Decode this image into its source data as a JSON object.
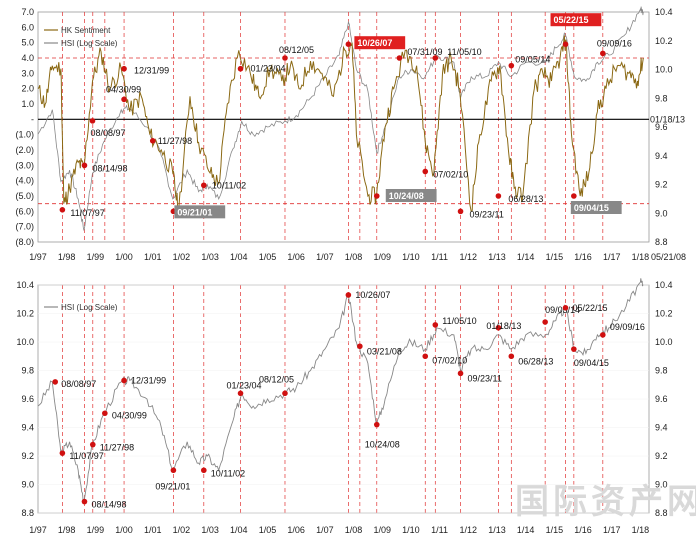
{
  "chart_data": [
    {
      "type": "line",
      "legend": [
        "HK Sentiment",
        "HSI (Log Scale)"
      ],
      "left_axis": {
        "range": [
          -8.0,
          7.0
        ],
        "ticks": [
          "7.0",
          "6.0",
          "5.0",
          "4.0",
          "3.0",
          "2.0",
          "1.0",
          "-",
          "(1.0)",
          "(2.0)",
          "(3.0)",
          "(4.0)",
          "(5.0)",
          "(6.0)",
          "(7.0)",
          "(8.0)"
        ]
      },
      "right_axis": {
        "range": [
          8.8,
          10.4
        ],
        "ticks": [
          "10.4",
          "10.2",
          "10.0",
          "9.8",
          "9.6",
          "9.4",
          "9.2",
          "9.0",
          "8.8"
        ]
      },
      "x_ticks": [
        "1/97",
        "1/98",
        "1/99",
        "1/00",
        "1/01",
        "1/02",
        "1/03",
        "1/04",
        "1/05",
        "1/06",
        "1/07",
        "1/08",
        "1/09",
        "1/10",
        "1/11",
        "1/12",
        "1/13",
        "1/14",
        "1/15",
        "1/16",
        "1/17",
        "1/18"
      ],
      "x_end_label": "05/21/08",
      "zero_label": "01/18/13",
      "series": [
        {
          "name": "HK Sentiment",
          "color": "#8b6914",
          "x": [
            1997.0,
            1997.25,
            1997.5,
            1997.8,
            1997.9,
            1998.1,
            1998.4,
            1998.6,
            1998.9,
            1999.2,
            1999.5,
            1999.9,
            2000.2,
            2000.6,
            2000.9,
            2001.3,
            2001.7,
            2001.9,
            2002.3,
            2002.6,
            2003.0,
            2003.3,
            2003.6,
            2004.0,
            2004.4,
            2004.7,
            2005.1,
            2005.5,
            2005.8,
            2006.1,
            2006.5,
            2006.9,
            2007.3,
            2007.7,
            2007.95,
            2008.1,
            2008.5,
            2008.8,
            2009.1,
            2009.4,
            2009.8,
            2010.2,
            2010.5,
            2010.8,
            2011.1,
            2011.4,
            2011.7,
            2012.1,
            2012.4,
            2012.8,
            2013.1,
            2013.4,
            2013.6,
            2013.9,
            2014.3,
            2014.6,
            2014.9,
            2015.2,
            2015.4,
            2015.6,
            2015.9,
            2016.2,
            2016.5,
            2016.8,
            2017.2,
            2017.6,
            2017.9,
            2018.1
          ],
          "y": [
            2.0,
            1.0,
            3.5,
            3.3,
            -5.5,
            -4.5,
            -2.8,
            -3.2,
            2.5,
            4.4,
            2.0,
            3.3,
            0.5,
            1.5,
            -1.0,
            -2.0,
            -3.5,
            -6.0,
            1.5,
            -1.5,
            -3.5,
            -4.2,
            1.0,
            4.5,
            3.0,
            1.5,
            3.3,
            2.5,
            3.5,
            2.0,
            3.8,
            3.0,
            1.5,
            4.5,
            5.0,
            -1.0,
            -5.0,
            -5.0,
            -0.5,
            2.0,
            4.5,
            3.5,
            -1.5,
            -3.5,
            3.0,
            4.0,
            2.0,
            -6.0,
            -1.0,
            2.5,
            3.5,
            -2.0,
            -4.5,
            -5.0,
            2.0,
            3.0,
            2.5,
            4.0,
            5.2,
            -1.0,
            -5.0,
            -3.5,
            0.5,
            2.0,
            3.5,
            3.0,
            2.5,
            4.0
          ]
        },
        {
          "name": "HSI (Log Scale)",
          "color": "#888888",
          "x": [
            1997.0,
            1997.5,
            1997.8,
            1998.1,
            1998.4,
            1998.6,
            1998.9,
            1999.3,
            1999.9,
            2000.2,
            2000.8,
            2001.3,
            2001.7,
            2002.2,
            2002.6,
            2002.9,
            2003.3,
            2003.8,
            2004.1,
            2004.5,
            2005.0,
            2005.6,
            2006.0,
            2006.5,
            2007.0,
            2007.5,
            2007.82,
            2008.1,
            2008.5,
            2008.81,
            2009.1,
            2009.6,
            2010.0,
            2010.5,
            2010.9,
            2011.5,
            2011.73,
            2012.1,
            2012.6,
            2013.05,
            2013.5,
            2014.0,
            2014.7,
            2015.05,
            2015.39,
            2015.7,
            2016.1,
            2016.5,
            2016.9,
            2017.5,
            2018.0,
            2018.1
          ],
          "y": [
            9.55,
            9.72,
            9.22,
            9.3,
            9.1,
            8.88,
            9.28,
            9.5,
            9.72,
            9.73,
            9.6,
            9.4,
            9.1,
            9.3,
            9.15,
            9.2,
            9.1,
            9.45,
            9.64,
            9.55,
            9.6,
            9.64,
            9.68,
            9.8,
            9.95,
            10.1,
            10.33,
            10.0,
            9.85,
            9.42,
            9.6,
            9.95,
            10.0,
            9.95,
            10.1,
            10.05,
            9.8,
            9.95,
            9.95,
            10.05,
            9.95,
            10.05,
            10.05,
            10.15,
            10.24,
            9.95,
            9.92,
            10.05,
            10.1,
            10.25,
            10.42,
            10.4
          ]
        }
      ],
      "annotations": [
        {
          "label": "11/07/97"
        },
        {
          "label": "08/14/98"
        },
        {
          "label": "08/08/97"
        },
        {
          "label": "12/31/99"
        },
        {
          "label": "04/30/99"
        },
        {
          "label": "11/27/98"
        },
        {
          "label": "09/21/01",
          "boxed": true
        },
        {
          "label": "10/11/02"
        },
        {
          "label": "01/23/04"
        },
        {
          "label": "08/12/05"
        },
        {
          "label": "10/26/07",
          "boxed": true
        },
        {
          "label": "07/31/09"
        },
        {
          "label": "11/05/10"
        },
        {
          "label": "10/24/08",
          "boxed": true
        },
        {
          "label": "07/02/10"
        },
        {
          "label": "09/23/11"
        },
        {
          "label": "06/28/13"
        },
        {
          "label": "09/05/14"
        },
        {
          "label": "05/22/15",
          "boxed": true
        },
        {
          "label": "09/09/16"
        },
        {
          "label": "09/04/15",
          "boxed": true
        }
      ]
    },
    {
      "type": "line",
      "legend": [
        "HSI (Log Scale)"
      ],
      "left_axis": {
        "range": [
          8.8,
          10.4
        ],
        "ticks": [
          "10.4",
          "10.2",
          "10.0",
          "9.8",
          "9.6",
          "9.4",
          "9.2",
          "9.0",
          "8.8"
        ]
      },
      "right_axis": {
        "range": [
          8.8,
          10.4
        ],
        "ticks": [
          "10.4",
          "10.2",
          "10.0",
          "9.8",
          "9.6",
          "9.4",
          "9.2",
          "9.0",
          "8.8"
        ]
      },
      "x_ticks": [
        "1/97",
        "1/98",
        "1/99",
        "1/00",
        "1/01",
        "1/02",
        "1/03",
        "1/04",
        "1/05",
        "1/06",
        "1/07",
        "1/08",
        "1/09",
        "1/10",
        "1/11",
        "1/12",
        "1/13",
        "1/14",
        "1/15",
        "1/16",
        "1/17",
        "1/18"
      ],
      "annotations": [
        {
          "label": "08/08/97"
        },
        {
          "label": "11/07/97"
        },
        {
          "label": "08/14/98"
        },
        {
          "label": "11/27/98"
        },
        {
          "label": "04/30/99"
        },
        {
          "label": "12/31/99"
        },
        {
          "label": "09/21/01"
        },
        {
          "label": "10/11/02"
        },
        {
          "label": "01/23/04"
        },
        {
          "label": "08/12/05"
        },
        {
          "label": "10/26/07"
        },
        {
          "label": "03/21/08"
        },
        {
          "label": "10/24/08"
        },
        {
          "label": "11/05/10"
        },
        {
          "label": "07/02/10"
        },
        {
          "label": "09/23/11"
        },
        {
          "label": "01/18/13"
        },
        {
          "label": "06/28/13"
        },
        {
          "label": "09/05/14"
        },
        {
          "label": "05/22/15"
        },
        {
          "label": "09/04/15"
        },
        {
          "label": "09/09/16"
        }
      ]
    }
  ],
  "watermark": "国际资产网"
}
